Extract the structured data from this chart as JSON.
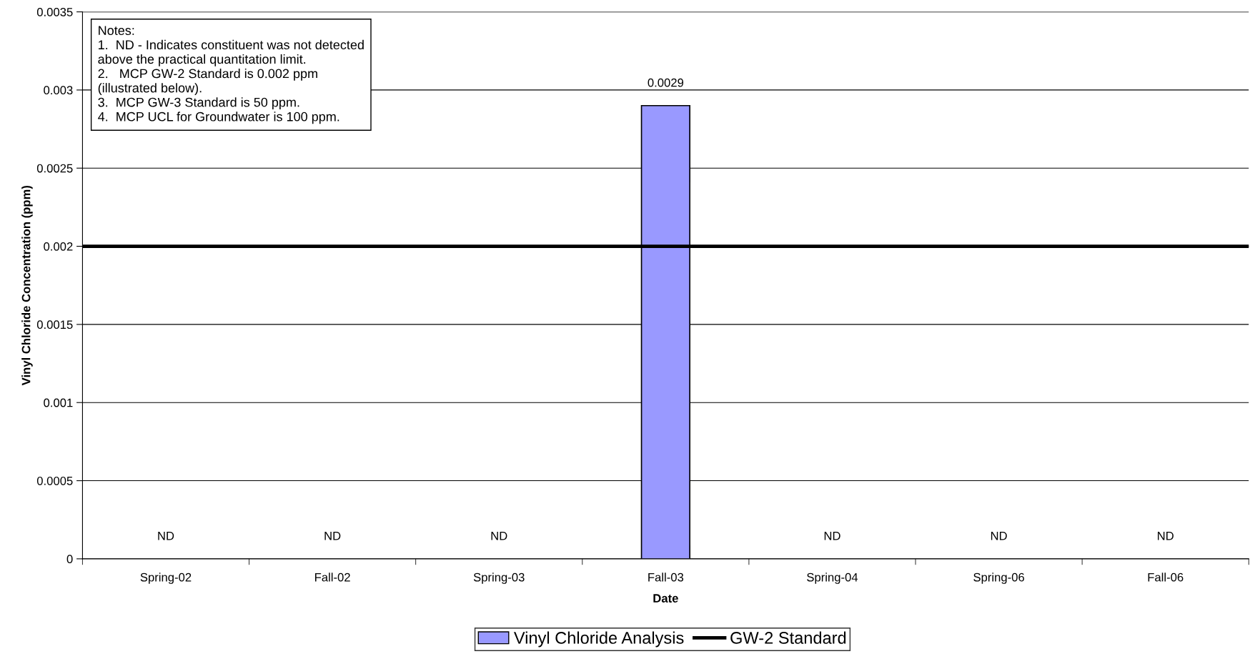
{
  "chart_data": {
    "type": "bar",
    "categories": [
      "Spring-02",
      "Fall-02",
      "Spring-03",
      "Fall-03",
      "Spring-04",
      "Spring-06",
      "Fall-06"
    ],
    "series": [
      {
        "name": "Vinyl Chloride Analysis",
        "color": "#9999ff",
        "values": [
          null,
          null,
          null,
          0.0029,
          null,
          null,
          null
        ],
        "value_labels": [
          "ND",
          "ND",
          "ND",
          "0.0029",
          "ND",
          "ND",
          "ND"
        ]
      }
    ],
    "xlabel": "Date",
    "ylabel": "Vinyl Chloride Concentration (ppm)",
    "ylim": [
      0,
      0.0035
    ],
    "yticks": [
      0,
      0.0005,
      0.001,
      0.0015,
      0.002,
      0.0025,
      0.003,
      0.0035
    ],
    "grid": "y",
    "legend": "bottom",
    "ref_lines": [
      {
        "axis": "y",
        "value": 0.002,
        "label": "GW-2 Standard",
        "color": "#000000",
        "line_style": "solid"
      }
    ],
    "annotations": [
      "Notes:\n1.  ND - Indicates constituent was not detected\nabove the practical quantitation limit.\n2.   MCP GW-2 Standard is 0.002 ppm\n(illustrated below).\n3.  MCP GW-3 Standard is 50 ppm.\n4.  MCP UCL for Groundwater is 100 ppm."
    ]
  }
}
